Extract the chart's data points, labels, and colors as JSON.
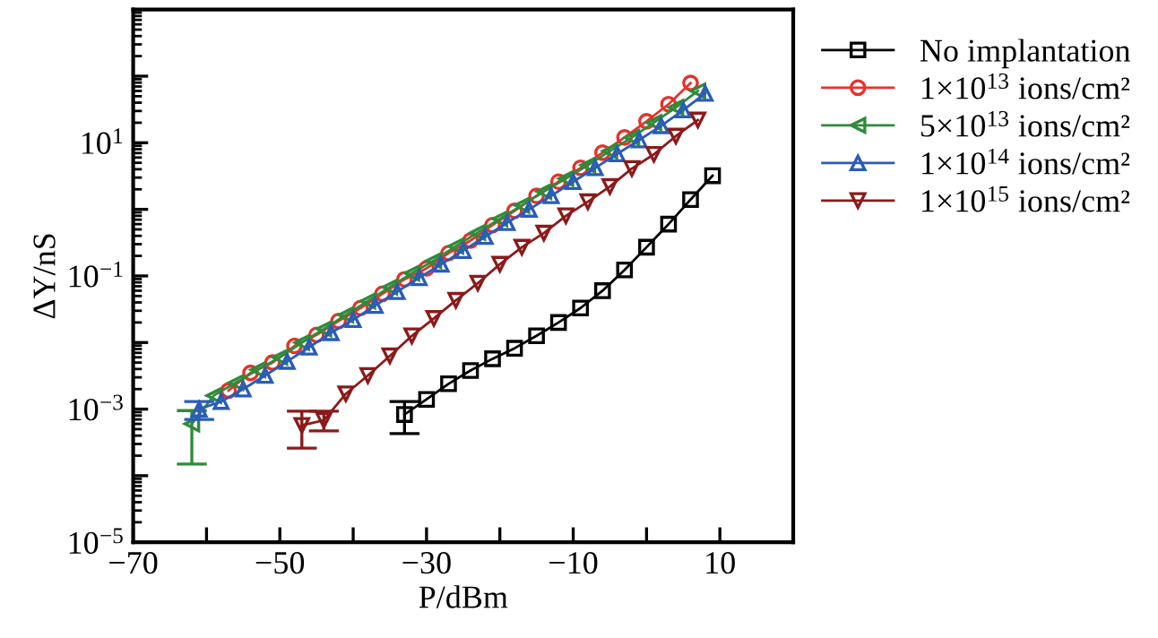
{
  "chart_data": {
    "type": "line",
    "xlabel": "P/dBm",
    "ylabel": "ΔY/nS",
    "xlim": [
      -70,
      20
    ],
    "ylim": [
      1e-05,
      1000
    ],
    "log": "y",
    "xticks": [
      -70,
      {
        "value": -60,
        "label": null
      },
      -50,
      {
        "value": -40,
        "label": null
      },
      -30,
      {
        "value": -20,
        "label": null
      },
      {
        "value": -10,
        "label": "−10"
      },
      {
        "value": 0,
        "label": null
      },
      10
    ],
    "yticks": [
      {
        "value": 1e-05,
        "label": "10$^{−5}$"
      },
      {
        "value": 0.0001,
        "label": null
      },
      {
        "value": 0.001,
        "label": "10$^{−3}$"
      },
      {
        "value": 0.01,
        "label": null
      },
      {
        "value": 0.1,
        "label": "10$^{−1}$"
      },
      {
        "value": 1,
        "label": null
      },
      {
        "value": 10,
        "label": "10$^{1}$"
      },
      {
        "value": 100,
        "label": null
      }
    ],
    "grid": false,
    "legend": "right",
    "line_style": "solid",
    "series": [
      {
        "name": "No implantation",
        "color": "#000000",
        "marker": "square",
        "x": [
          -33,
          -30,
          -27,
          -24,
          -21,
          -18,
          -15,
          -12,
          -9,
          -6,
          -3,
          0,
          3,
          6,
          9
        ],
        "values": [
          0.00083,
          0.0014,
          0.0024,
          0.0038,
          0.0057,
          0.0082,
          0.0126,
          0.02,
          0.033,
          0.06,
          0.123,
          0.27,
          0.6,
          1.4,
          3.2
        ],
        "errors": [
          [
            0.00043,
            0.0013
          ],
          null,
          null,
          null,
          null,
          null,
          null,
          null,
          null,
          null,
          null,
          null,
          null,
          null,
          null
        ]
      },
      {
        "name": "1×10$^{13}$ ions/cm²",
        "color": "#e8312a",
        "marker": "circle",
        "x": [
          -57,
          -54,
          -51,
          -48,
          -45,
          -42,
          -39,
          -36,
          -33,
          -30,
          -27,
          -24,
          -21,
          -18,
          -15,
          -12,
          -9,
          -6,
          -3,
          0,
          3,
          6
        ],
        "values": [
          0.0019,
          0.0035,
          0.005,
          0.0089,
          0.013,
          0.021,
          0.033,
          0.054,
          0.089,
          0.13,
          0.22,
          0.34,
          0.58,
          0.95,
          1.6,
          2.6,
          4.2,
          7.1,
          12,
          21,
          38,
          79
        ]
      },
      {
        "name": "5×10$^{13}$ ions/cm²",
        "color": "#2e8b3a",
        "marker": "triangle_left",
        "x": [
          -62,
          -59,
          -56,
          -53,
          -50,
          -47,
          -44,
          -41,
          -38,
          -35,
          -32,
          -29,
          -26,
          -23,
          -20,
          -17,
          -14,
          -11,
          -8,
          -5,
          -2,
          1,
          4,
          7
        ],
        "values": [
          0.0006,
          0.0016,
          0.0025,
          0.0039,
          0.006,
          0.01,
          0.016,
          0.026,
          0.042,
          0.068,
          0.11,
          0.17,
          0.28,
          0.45,
          0.72,
          1.15,
          1.85,
          2.9,
          4.6,
          7.5,
          12,
          20,
          34,
          60
        ],
        "errors": [
          [
            0.00015,
            0.00095
          ],
          null,
          null,
          null,
          null,
          null,
          null,
          null,
          null,
          null,
          null,
          null,
          null,
          null,
          null,
          null,
          null,
          null,
          null,
          null,
          null,
          null,
          null,
          null
        ]
      },
      {
        "name": "1×10$^{14}$ ions/cm²",
        "color": "#2a5cb8",
        "marker": "triangle",
        "x": [
          -61,
          -58,
          -55,
          -52,
          -49,
          -46,
          -43,
          -40,
          -37,
          -34,
          -31,
          -28,
          -25,
          -22,
          -19,
          -16,
          -13,
          -10,
          -7,
          -4,
          -1,
          2,
          5,
          8
        ],
        "values": [
          0.001,
          0.0013,
          0.002,
          0.0032,
          0.0052,
          0.0085,
          0.014,
          0.022,
          0.036,
          0.058,
          0.094,
          0.15,
          0.24,
          0.39,
          0.63,
          1.0,
          1.6,
          2.6,
          4.2,
          6.8,
          11,
          18,
          31,
          55
        ],
        "errors": [
          [
            0.0007,
            0.0013
          ],
          null,
          null,
          null,
          null,
          null,
          null,
          null,
          null,
          null,
          null,
          null,
          null,
          null,
          null,
          null,
          null,
          null,
          null,
          null,
          null,
          null,
          null,
          null
        ]
      },
      {
        "name": "1×10$^{15}$ ions/cm²",
        "color": "#8b1a1a",
        "marker": "triangle_down",
        "x": [
          -47,
          -44,
          -41,
          -38,
          -35,
          -32,
          -29,
          -26,
          -23,
          -20,
          -17,
          -14,
          -11,
          -8,
          -5,
          -2,
          1,
          4,
          7
        ],
        "values": [
          0.00057,
          0.00068,
          0.0017,
          0.0032,
          0.0063,
          0.0126,
          0.023,
          0.043,
          0.078,
          0.15,
          0.27,
          0.44,
          0.8,
          1.3,
          2.2,
          4.1,
          6.7,
          12.6,
          22
        ],
        "errors": [
          [
            0.00026,
            0.00093
          ],
          [
            0.00047,
            0.00093
          ],
          null,
          null,
          null,
          null,
          null,
          null,
          null,
          null,
          null,
          null,
          null,
          null,
          null,
          null,
          null,
          null,
          null
        ]
      }
    ]
  }
}
